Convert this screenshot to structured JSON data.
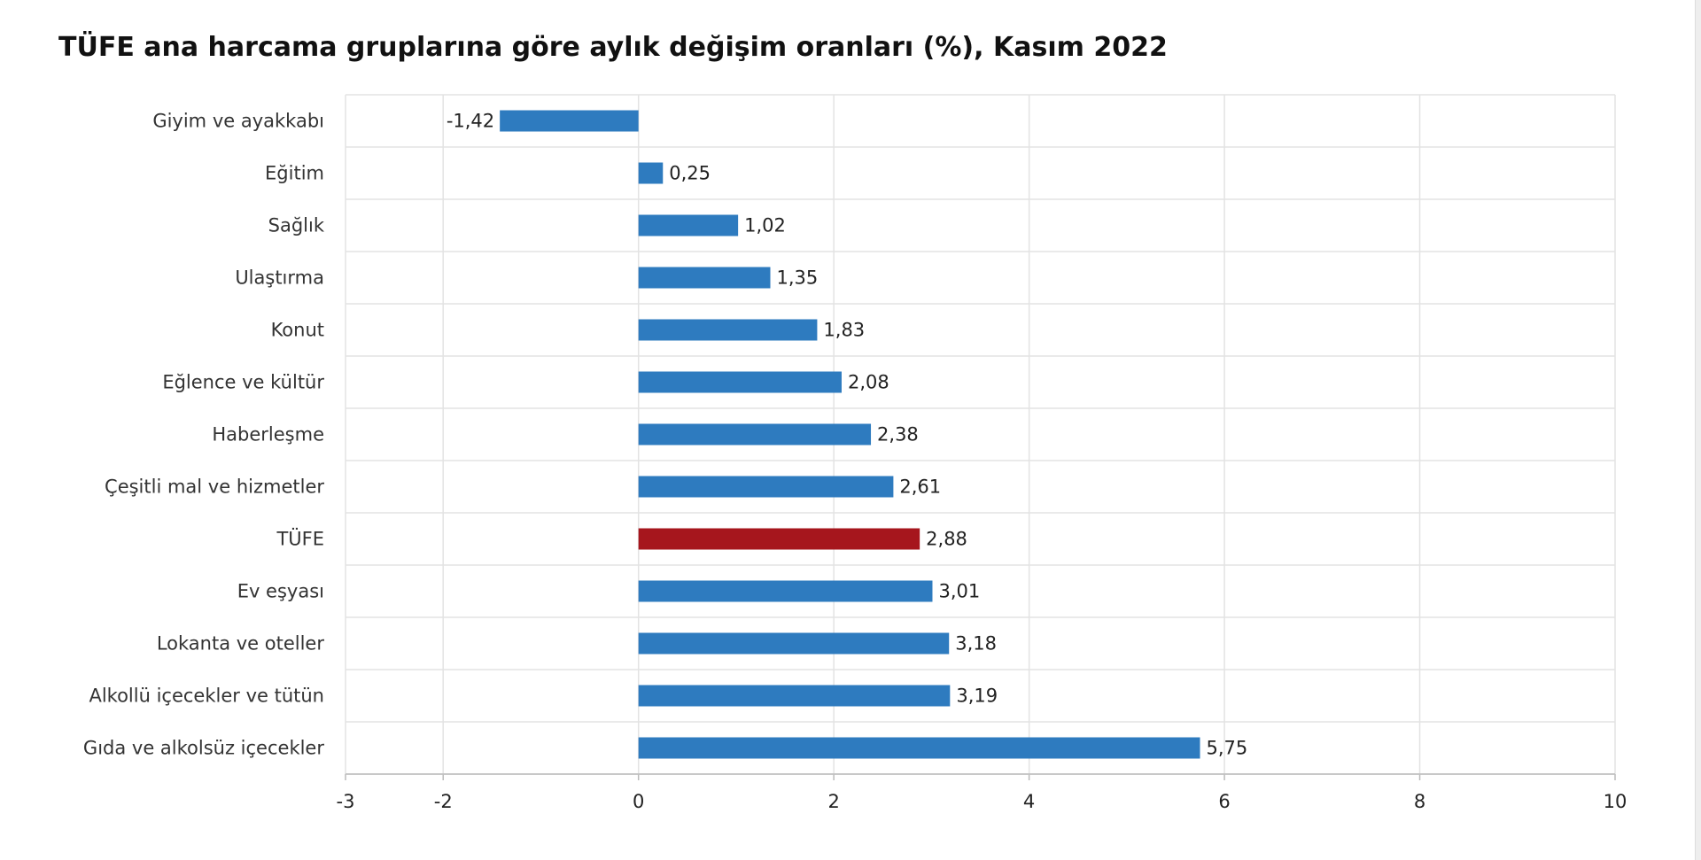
{
  "chart_data": {
    "type": "bar",
    "orientation": "horizontal",
    "title": "TÜFE ana harcama gruplarına göre aylık değişim oranları (%), Kasım 2022",
    "xlabel": "",
    "ylabel": "",
    "xlim": [
      -3,
      10
    ],
    "xticks": [
      -3,
      -2,
      0,
      2,
      4,
      6,
      8,
      10
    ],
    "grid": true,
    "legend": "none",
    "categories": [
      "Giyim ve ayakkabı",
      "Eğitim",
      "Sağlık",
      "Ulaştırma",
      "Konut",
      "Eğlence ve kültür",
      "Haberleşme",
      "Çeşitli mal ve hizmetler",
      "TÜFE",
      "Ev eşyası",
      "Lokanta ve oteller",
      "Alkollü içecekler ve tütün",
      "Gıda ve alkolsüz içecekler"
    ],
    "values": [
      -1.42,
      0.25,
      1.02,
      1.35,
      1.83,
      2.08,
      2.38,
      2.61,
      2.88,
      3.01,
      3.18,
      3.19,
      5.75
    ],
    "value_labels": [
      "-1,42",
      "0,25",
      "1,02",
      "1,35",
      "1,83",
      "2,08",
      "2,38",
      "2,61",
      "2,88",
      "3,01",
      "3,18",
      "3,19",
      "5,75"
    ],
    "colors": {
      "default": "#2e7bbf",
      "highlight": "#a6161d",
      "highlight_category": "TÜFE",
      "grid": "#e3e3e3",
      "axis": "#bbbbbb"
    }
  }
}
